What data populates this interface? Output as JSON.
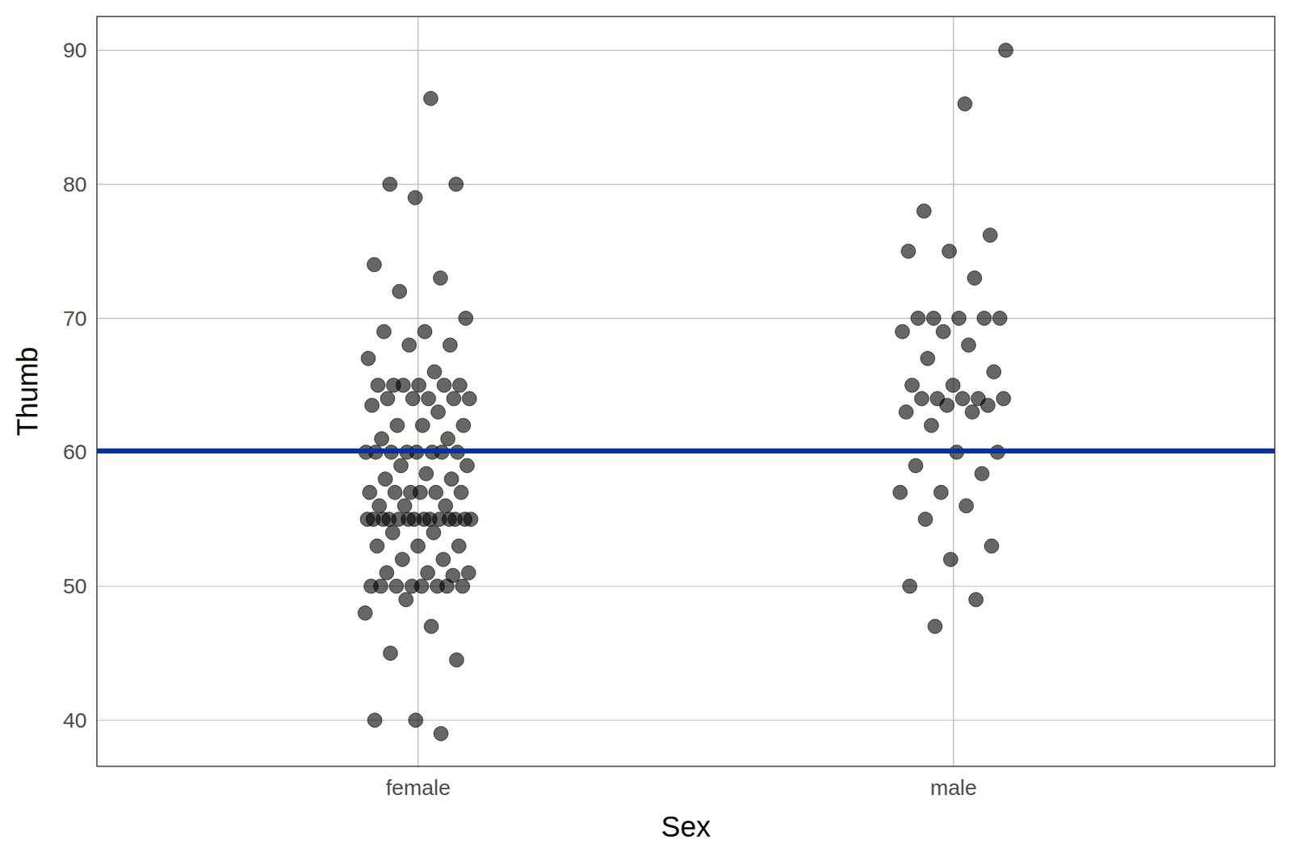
{
  "chart_data": {
    "type": "scatter",
    "x_label": "Sex",
    "y_label": "Thumb",
    "categories": [
      "female",
      "male"
    ],
    "values": [
      [
        86.4,
        80,
        80,
        79,
        74,
        73,
        72,
        70,
        69,
        69,
        68,
        68,
        67,
        66,
        65,
        65,
        65,
        65,
        65,
        65,
        64,
        64,
        64,
        64,
        64,
        63.5,
        63,
        62,
        62,
        62,
        61,
        61,
        60,
        60,
        60,
        60,
        60,
        60,
        60,
        60,
        59,
        59,
        58.4,
        58,
        58,
        57,
        57,
        57,
        57,
        57,
        57,
        56,
        56,
        56,
        55,
        55,
        55,
        55,
        55,
        55,
        55,
        55,
        55,
        55,
        55,
        55,
        55,
        55,
        54,
        54,
        53,
        53,
        53,
        52,
        52,
        51,
        51,
        51,
        50.8,
        50,
        50,
        50,
        50,
        50,
        50,
        50,
        50,
        49,
        48,
        47,
        45,
        44.5,
        40,
        40,
        39
      ],
      [
        90,
        86,
        78,
        76.2,
        75,
        75,
        73,
        70,
        70,
        70,
        70,
        70,
        69,
        69,
        68,
        67,
        66,
        65,
        65,
        64,
        64,
        64,
        64,
        64,
        63.5,
        63.5,
        63,
        63,
        62,
        60,
        60,
        59,
        58.4,
        57,
        57,
        56,
        55,
        53,
        52,
        50,
        49,
        47
      ]
    ],
    "reference_line": 60.1,
    "color": "#000000",
    "ylim": [
      36.56,
      92.52
    ],
    "yticks": [
      40,
      50,
      60,
      70,
      80,
      90
    ],
    "grid": true
  }
}
